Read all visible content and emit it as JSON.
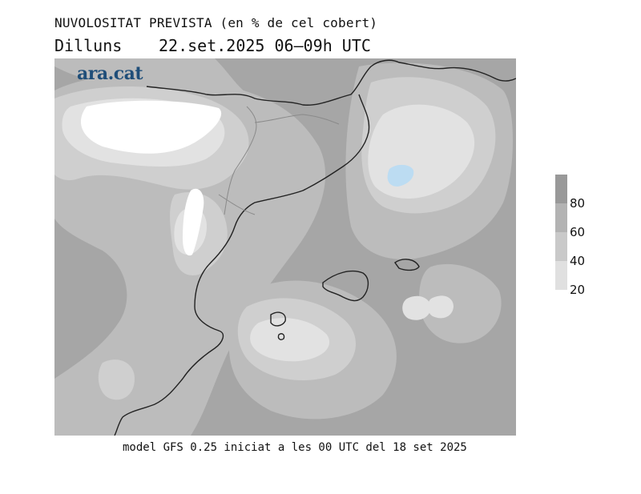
{
  "header": {
    "title": "NUVOLOSITAT PREVISTA (en % de cel cobert)",
    "day": "Dilluns",
    "datetime": "22.set.2025 06–09h UTC"
  },
  "logo": {
    "text": "ara.cat",
    "color": "#1f4e79"
  },
  "legend": {
    "levels": [
      {
        "label": "80",
        "color": "#999999"
      },
      {
        "label": "60",
        "color": "#b3b3b3"
      },
      {
        "label": "40",
        "color": "#c9c9c9"
      },
      {
        "label": "20",
        "color": "#e0e0e0"
      }
    ]
  },
  "map": {
    "colors": {
      "base": "#a6a6a6",
      "level1": "#bcbcbc",
      "level2": "#cfcfcf",
      "level3": "#e2e2e2",
      "clear": "#ffffff",
      "blue": "#bcdcf2",
      "coast": "#222222",
      "borders": "#8a8a8a"
    }
  },
  "footer": {
    "text": "model GFS 0.25 iniciat a les 00 UTC del 18 set 2025"
  }
}
